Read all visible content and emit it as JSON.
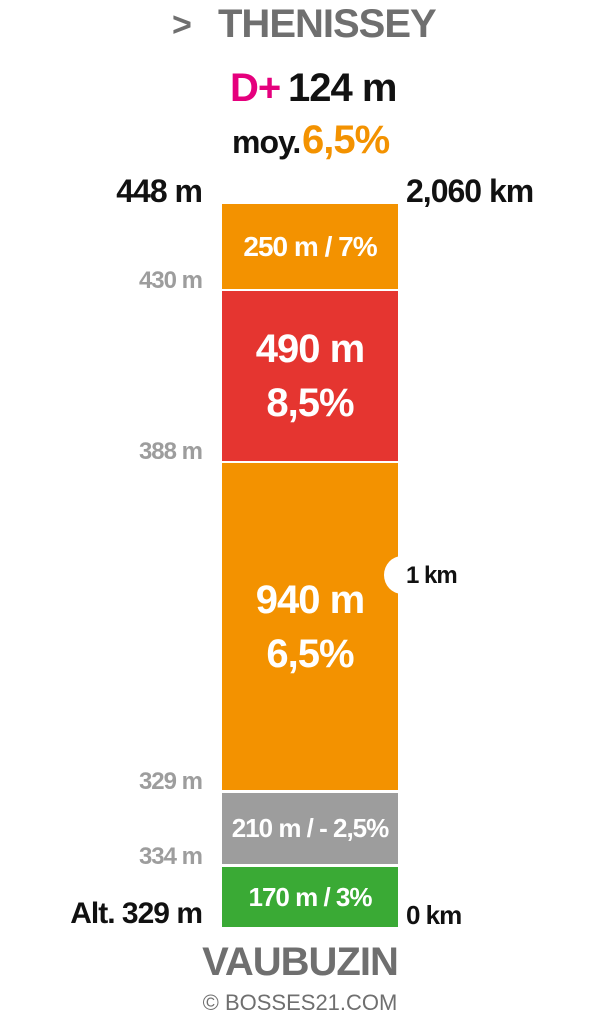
{
  "header": {
    "arrow": ">",
    "destination": "THENISSEY",
    "dplus_label": "D+",
    "dplus_value": "124 m",
    "average_label": "moy.",
    "average_value": "6,5%"
  },
  "top": {
    "altitude": "448 m",
    "distance": "2,060 km"
  },
  "segments": [
    {
      "lines": [
        "250 m / 7%"
      ]
    },
    {
      "lines": [
        "490 m",
        "8,5%"
      ]
    },
    {
      "lines": [
        "940 m",
        "6,5%"
      ]
    },
    {
      "lines": [
        "210 m / - 2,5%"
      ]
    },
    {
      "lines": [
        "170 m / 3%"
      ]
    }
  ],
  "altitudes": [
    "430 m",
    "388 m",
    "329 m",
    "334 m"
  ],
  "km_markers": [
    "1 km"
  ],
  "bottom": {
    "altitude": "Alt. 329 m",
    "distance": "0 km",
    "start": "VAUBUZIN"
  },
  "footer": {
    "copyright": "© BOSSES21.COM"
  }
}
